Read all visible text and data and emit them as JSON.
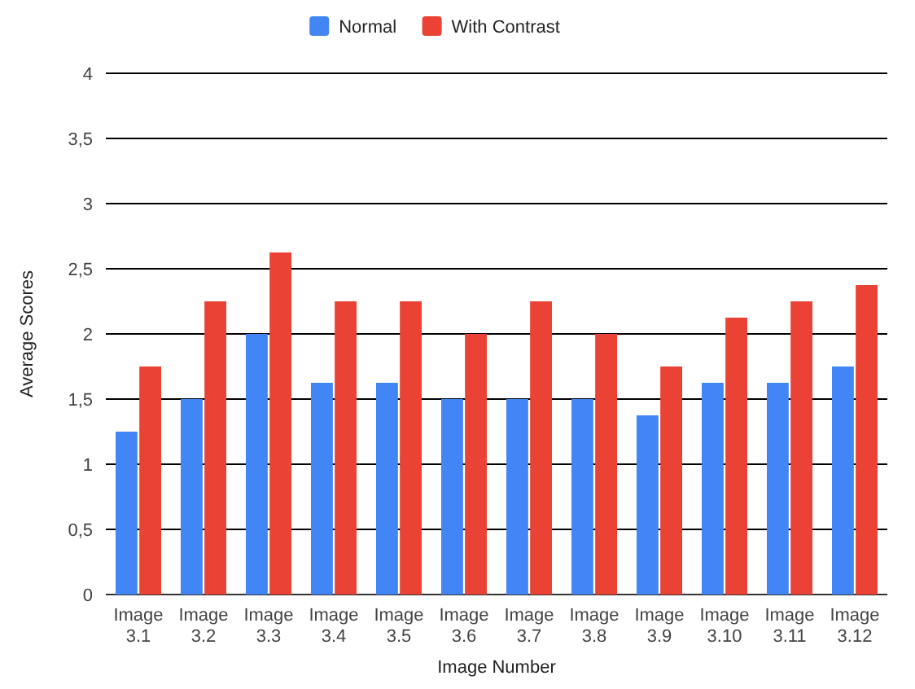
{
  "chart_data": {
    "type": "bar",
    "xlabel": "Image Number",
    "ylabel": "Average Scores",
    "categories": [
      "Image 3.1",
      "Image 3.2",
      "Image 3.3",
      "Image 3.4",
      "Image 3.5",
      "Image 3.6",
      "Image 3.7",
      "Image 3.8",
      "Image 3.9",
      "Image 3.10",
      "Image 3.11",
      "Image 3.12"
    ],
    "series": [
      {
        "name": "Normal",
        "color": "#4285f4",
        "values": [
          1.25,
          1.5,
          2,
          1.625,
          1.625,
          1.5,
          1.5,
          1.5,
          1.375,
          1.625,
          1.625,
          1.75
        ]
      },
      {
        "name": "With Contrast",
        "color": "#ea4335",
        "values": [
          1.75,
          2.25,
          2.625,
          2.25,
          2.25,
          2,
          2.25,
          2,
          1.75,
          2.125,
          2.25,
          2.375
        ]
      }
    ],
    "ylim": [
      0,
      4
    ],
    "yticks": [
      0,
      {
        "value": 0.5,
        "label": "0,5"
      },
      1,
      {
        "value": 1.5,
        "label": "1,5"
      },
      2,
      {
        "value": 2.5,
        "label": "2,5"
      },
      3,
      {
        "value": 3.5,
        "label": "3,5"
      },
      4
    ],
    "grid": "y",
    "legend": "top"
  }
}
